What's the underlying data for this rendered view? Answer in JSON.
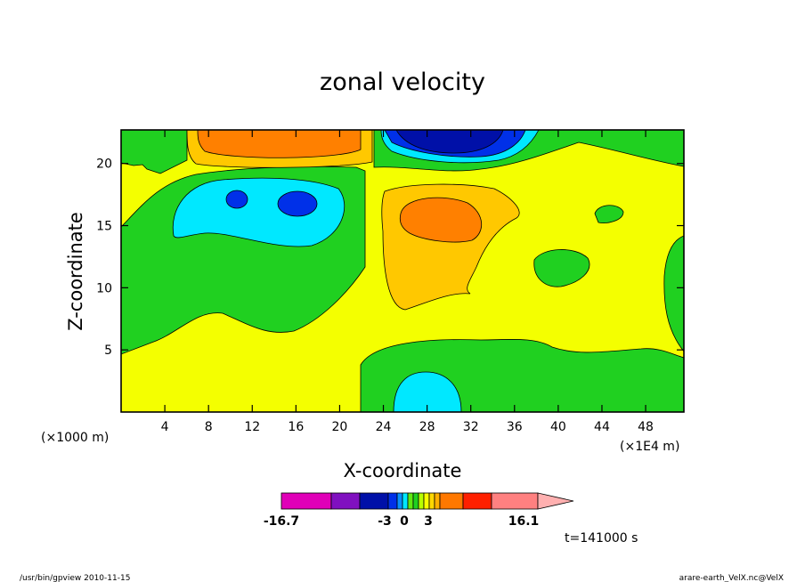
{
  "chart_data": {
    "type": "heatmap",
    "title": "zonal velocity",
    "xlabel": "X-coordinate",
    "ylabel": "Z-coordinate",
    "x_units_label": "(×1000 m)",
    "x_scale_label": "(×1E4 m)",
    "xlim": [
      0,
      51.5
    ],
    "ylim": [
      0,
      22.7
    ],
    "x_ticks": [
      4,
      8,
      12,
      16,
      20,
      24,
      28,
      32,
      36,
      40,
      44,
      48
    ],
    "y_ticks": [
      5,
      10,
      15,
      20
    ],
    "time_label": "t=141000 s",
    "colorbar": {
      "tick_labels": [
        "-16.7",
        "-3",
        "0",
        "3",
        "16.1"
      ],
      "colors": [
        "#e000b8",
        "#8010c0",
        "#0010a8",
        "#0030e8",
        "#0890ff",
        "#00e8ff",
        "#60e810",
        "#20d020",
        "#b8ff00",
        "#f8ff00",
        "#ffd800",
        "#ffb000",
        "#ff7800",
        "#ff2000",
        "#ff8080",
        "#ffb0b0"
      ]
    },
    "regions": [
      {
        "value": "green",
        "color": "#20d020"
      },
      {
        "value": "yellow",
        "color": "#f4ff00"
      },
      {
        "value": "light-orange",
        "color": "#ffc800"
      },
      {
        "value": "orange",
        "color": "#ff8000"
      },
      {
        "value": "cyan",
        "color": "#00e8ff"
      },
      {
        "value": "blue",
        "color": "#0030e8"
      },
      {
        "value": "dark-blue",
        "color": "#0010a8"
      }
    ]
  },
  "footer": {
    "left": "/usr/bin/gpview   2010-11-15",
    "right": "arare-earth_VelX.nc@VelX"
  }
}
